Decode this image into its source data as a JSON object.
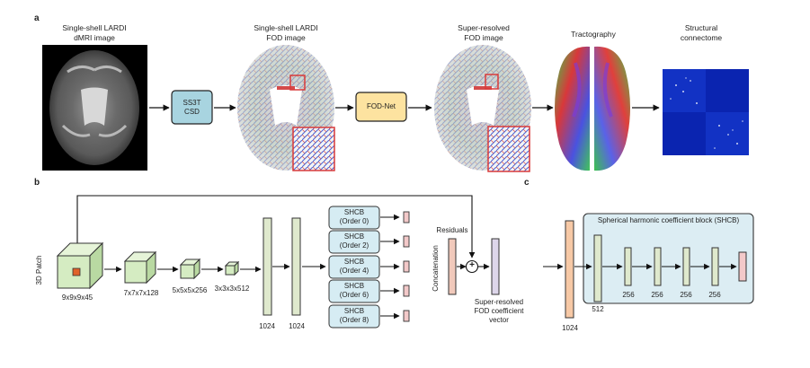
{
  "panel_a": {
    "letter": "a",
    "steps": [
      {
        "title_l1": "Single-shell LARDI",
        "title_l2": "dMRI image"
      },
      {
        "title_l1": "Single-shell LARDI",
        "title_l2": "FOD image"
      },
      {
        "title_l1": "Super-resolved",
        "title_l2": "FOD image"
      },
      {
        "title_l1": "Tractography",
        "title_l2": ""
      },
      {
        "title_l1": "Structural",
        "title_l2": "connectome"
      }
    ],
    "ss3t_box": {
      "l1": "SS3T",
      "l2": "CSD"
    },
    "fodnet_box": "FOD-Net"
  },
  "panel_b": {
    "letter": "b",
    "patch_label": "3D Patch",
    "cube_dims": [
      "9x9x9x45",
      "7x7x7x128",
      "5x5x5x256",
      "3x3x3x512"
    ],
    "fc_dims": [
      "1024",
      "1024"
    ],
    "shcb_boxes": [
      {
        "l1": "SHCB",
        "l2": "(Order 0)"
      },
      {
        "l1": "SHCB",
        "l2": "(Order 2)"
      },
      {
        "l1": "SHCB",
        "l2": "(Order 4)"
      },
      {
        "l1": "SHCB",
        "l2": "(Order 6)"
      },
      {
        "l1": "SHCB",
        "l2": "(Order 8)"
      }
    ],
    "concat_label": "Concatenation",
    "residuals_label": "Residuals",
    "plus_symbol": "+",
    "output_l1": "Super-resolved",
    "output_l2": "FOD coefficient",
    "output_l3": "vector"
  },
  "panel_c": {
    "letter": "c",
    "title": "Spherical harmonic coefficient block (SHCB)",
    "input_dim": "1024",
    "layer_dims": [
      "512",
      "256",
      "256",
      "256",
      "256"
    ]
  },
  "colors": {
    "ss3t_fill": "#a8d4e0",
    "fodnet_fill": "#fde3a0",
    "cube_fill": "#d5ecc2",
    "fc_fill": "#dfe9cd",
    "shcb_box_fill": "#d6ecf3",
    "concat_fill": "#f1c9bb",
    "output_fill": "#ddd6ea",
    "input_1024_fill": "#f7c9a6",
    "shcb_panel_fill": "#dcedf3",
    "small_out_fill": "#f3c9c9",
    "red_box": "#d93a3a"
  }
}
